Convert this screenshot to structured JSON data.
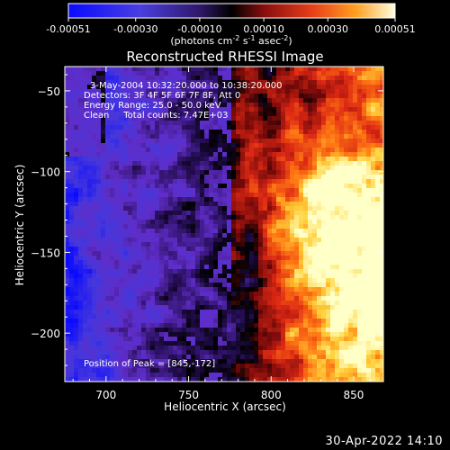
{
  "timestamp": "30-Apr-2022 14:10",
  "colorbar": {
    "ticks": [
      "-0.00051",
      "-0.00030",
      "-0.00010",
      "0.00010",
      "0.00030",
      "0.00051"
    ],
    "tick_values": [
      -0.00051,
      -0.0003,
      -0.0001,
      0.0001,
      0.0003,
      0.00051
    ],
    "range": [
      -0.00051,
      0.00051
    ],
    "units_main": "(photons cm",
    "units_exp1": "-2",
    "units_mid": " s",
    "units_exp2": "-1",
    "units_mid2": " asec",
    "units_exp3": "-2",
    "units_close": ")"
  },
  "chart_data": {
    "type": "heatmap",
    "title": "Reconstructed RHESSI Image",
    "xlabel": "Heliocentric X (arcsec)",
    "ylabel": "Heliocentric Y (arcsec)",
    "xlim": [
      675,
      868
    ],
    "ylim": [
      -230,
      -35
    ],
    "xticks": [
      700,
      750,
      800,
      850
    ],
    "yticks": [
      -50,
      -100,
      -150,
      -200
    ],
    "annotations": [
      "3-May-2004 10:32:20.000 to 10:38:20.000",
      "Detectors: 3F 4F 5F 6F 7F 8F, Att 0",
      "Energy Range: 25.0 - 50.0 keV",
      "Clean     Total counts: 7.47E+03"
    ],
    "peak_label": "Position of Peak = [845,-172]",
    "peak": [
      845,
      -172
    ],
    "colors": {
      "negative_low": "#1010ff",
      "negative_mid": "#5a32c8",
      "zero": "#000000",
      "positive_mid": "#e0281a",
      "positive_high": "#ffff66"
    }
  }
}
